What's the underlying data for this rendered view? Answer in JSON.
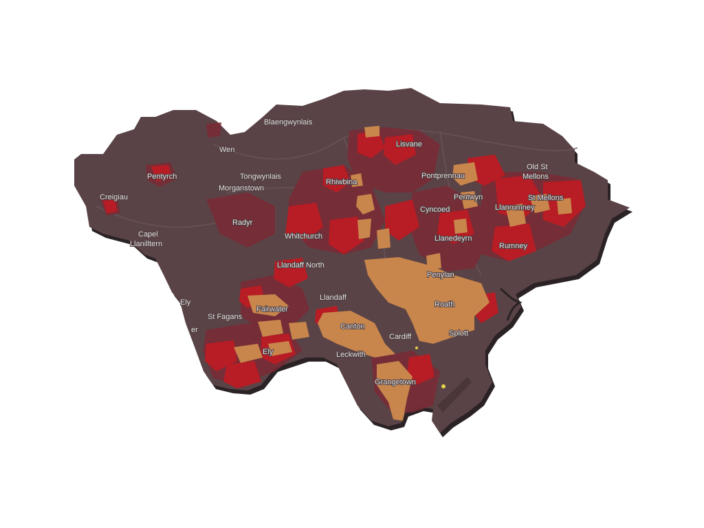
{
  "map": {
    "region": "Cardiff",
    "colors": {
      "background": "#ffffff",
      "land": "#5a4346",
      "shadow": "#2a2224",
      "road": "#6b5558",
      "class_low": "#7a2a35",
      "class_mid": "#b81c24",
      "class_high": "#c8864c",
      "class_top": "#e5d34a"
    },
    "labels": [
      {
        "id": "blaengwynlais",
        "text": "Blaengwynlais"
      },
      {
        "id": "lisvane",
        "text": "Lisvane"
      },
      {
        "id": "old-st",
        "text": "Old St"
      },
      {
        "id": "mellons",
        "text": "Mellons"
      },
      {
        "id": "pentyrch",
        "text": "Pentyrch"
      },
      {
        "id": "tongwynlais",
        "text": "Tongwynlais"
      },
      {
        "id": "pontprennau",
        "text": "Pontprennau"
      },
      {
        "id": "wenvoe",
        "text": "Wen"
      },
      {
        "id": "morganstown",
        "text": "Morganstown"
      },
      {
        "id": "rhiwbina",
        "text": "Rhiwbina"
      },
      {
        "id": "pentwyn",
        "text": "Pentwyn"
      },
      {
        "id": "creigiau",
        "text": "Creigiau"
      },
      {
        "id": "llanrumney",
        "text": "Llanrumney"
      },
      {
        "id": "st-mellons",
        "text": "St Mellons"
      },
      {
        "id": "cyncoed",
        "text": "Cyncoed"
      },
      {
        "id": "radyr",
        "text": "Radyr"
      },
      {
        "id": "capel",
        "text": "Capel"
      },
      {
        "id": "llanilltern",
        "text": "Llanilltern"
      },
      {
        "id": "whitchurch",
        "text": "Whitchurch"
      },
      {
        "id": "llanedeyrn",
        "text": "Llanedeyrn"
      },
      {
        "id": "rumney",
        "text": "Rumney"
      },
      {
        "id": "llandaff-north",
        "text": "Llandaff North"
      },
      {
        "id": "penylan",
        "text": "Penylan"
      },
      {
        "id": "llandaff",
        "text": "Llandaff"
      },
      {
        "id": "ely-west",
        "text": "Ely"
      },
      {
        "id": "roath",
        "text": "Roath"
      },
      {
        "id": "st-fagans",
        "text": "St Fagans"
      },
      {
        "id": "fairwater",
        "text": "Fairwater"
      },
      {
        "id": "canton",
        "text": "Canton"
      },
      {
        "id": "er",
        "text": "er"
      },
      {
        "id": "splott",
        "text": "Splott"
      },
      {
        "id": "cardiff",
        "text": "Cardiff"
      },
      {
        "id": "ely",
        "text": "Ely"
      },
      {
        "id": "leckwith",
        "text": "Leckwith"
      },
      {
        "id": "grangetown",
        "text": "Grangetown"
      }
    ]
  }
}
